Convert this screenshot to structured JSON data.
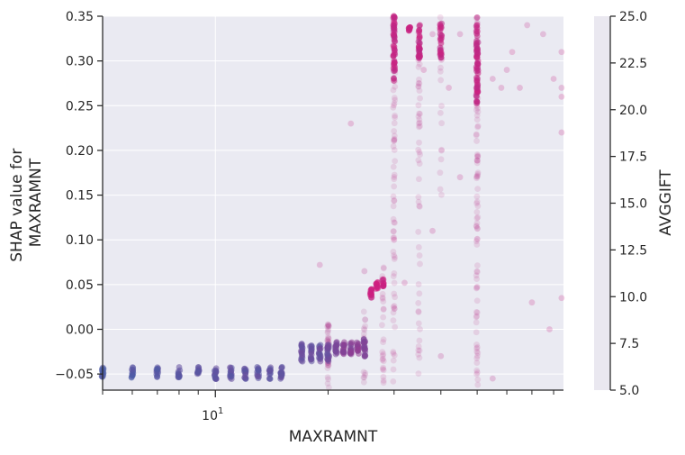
{
  "chart_data": {
    "type": "scatter",
    "xlabel": "MAXRAMNT",
    "ylabel_lines": [
      "SHAP value for",
      "MAXRAMNT"
    ],
    "x_scale": "log",
    "xlim": [
      5,
      85
    ],
    "ylim": [
      -0.068,
      0.35
    ],
    "grid": true,
    "x_tick_labels": [
      {
        "value": 10,
        "base": "10",
        "exp": "1"
      }
    ],
    "y_ticks": [
      -0.05,
      0.0,
      0.05,
      0.1,
      0.15,
      0.2,
      0.25,
      0.3,
      0.35
    ],
    "y_tick_labels": [
      "−0.05",
      "0.00",
      "0.05",
      "0.10",
      "0.15",
      "0.20",
      "0.25",
      "0.30",
      "0.35"
    ],
    "x_minor_ticks": [
      5,
      6,
      7,
      8,
      9,
      20,
      30,
      40,
      50,
      60,
      70,
      80
    ],
    "colorbar": {
      "label": "AVGGIFT",
      "range": [
        5.0,
        25.0
      ],
      "ticks": [
        5.0,
        7.5,
        10.0,
        12.5,
        15.0,
        17.5,
        20.0,
        22.5,
        25.0
      ],
      "tick_labels": [
        "5.0",
        "7.5",
        "10.0",
        "12.5",
        "15.0",
        "17.5",
        "20.0",
        "22.5",
        "25.0"
      ],
      "color_low": "#4a5ea8",
      "color_high": "#e0177a"
    },
    "series": [
      {
        "clusters": [
          {
            "x": 5,
            "y_center": -0.048,
            "y_spread": 0.006,
            "n": 14,
            "c": 5.5
          },
          {
            "x": 6,
            "y_center": -0.048,
            "y_spread": 0.006,
            "n": 14,
            "c": 6.0
          },
          {
            "x": 7,
            "y_center": -0.048,
            "y_spread": 0.006,
            "n": 14,
            "c": 7.0
          },
          {
            "x": 8,
            "y_center": -0.048,
            "y_spread": 0.006,
            "n": 14,
            "c": 7.5
          },
          {
            "x": 9,
            "y_center": -0.048,
            "y_spread": 0.006,
            "n": 14,
            "c": 8.0
          },
          {
            "x": 10,
            "y_center": -0.049,
            "y_spread": 0.007,
            "n": 18,
            "c": 8.0
          },
          {
            "x": 11,
            "y_center": -0.049,
            "y_spread": 0.007,
            "n": 16,
            "c": 8.0
          },
          {
            "x": 12,
            "y_center": -0.049,
            "y_spread": 0.007,
            "n": 16,
            "c": 8.0
          },
          {
            "x": 13,
            "y_center": -0.049,
            "y_spread": 0.007,
            "n": 14,
            "c": 8.0
          },
          {
            "x": 14,
            "y_center": -0.049,
            "y_spread": 0.007,
            "n": 14,
            "c": 8.0
          },
          {
            "x": 15,
            "y_center": -0.049,
            "y_spread": 0.007,
            "n": 18,
            "c": 8.0
          },
          {
            "x": 17,
            "y_center": -0.026,
            "y_spread": 0.01,
            "n": 20,
            "c": 9.0
          },
          {
            "x": 18,
            "y_center": -0.026,
            "y_spread": 0.01,
            "n": 18,
            "c": 9.0
          },
          {
            "x": 19,
            "y_center": -0.026,
            "y_spread": 0.01,
            "n": 18,
            "c": 9.0
          },
          {
            "x": 20,
            "y_center": -0.026,
            "y_spread": 0.01,
            "n": 22,
            "c": 9.5
          },
          {
            "x": 21,
            "y_center": -0.021,
            "y_spread": 0.007,
            "n": 16,
            "c": 12.0
          },
          {
            "x": 22,
            "y_center": -0.021,
            "y_spread": 0.007,
            "n": 16,
            "c": 13.0
          },
          {
            "x": 23,
            "y_center": -0.021,
            "y_spread": 0.007,
            "n": 16,
            "c": 13.0
          },
          {
            "x": 24,
            "y_center": -0.021,
            "y_spread": 0.007,
            "n": 14,
            "c": 14.0
          },
          {
            "x": 25,
            "y_center": -0.022,
            "y_spread": 0.012,
            "n": 22,
            "c": 12.0
          },
          {
            "x": 26,
            "y_center": 0.04,
            "y_spread": 0.006,
            "n": 14,
            "c": 22.0
          },
          {
            "x": 27,
            "y_center": 0.05,
            "y_spread": 0.005,
            "n": 12,
            "c": 22.0
          },
          {
            "x": 28,
            "y_center": 0.052,
            "y_spread": 0.004,
            "n": 10,
            "c": 22.0
          },
          {
            "x": 30,
            "y_center": 0.315,
            "y_spread": 0.04,
            "n": 50,
            "c": 21.0
          },
          {
            "x": 33,
            "y_center": 0.335,
            "y_spread": 0.003,
            "n": 10,
            "c": 22.0
          },
          {
            "x": 35,
            "y_center": 0.322,
            "y_spread": 0.02,
            "n": 30,
            "c": 21.0
          },
          {
            "x": 40,
            "y_center": 0.323,
            "y_spread": 0.02,
            "n": 24,
            "c": 21.0
          },
          {
            "x": 50,
            "y_center": 0.3,
            "y_spread": 0.05,
            "n": 60,
            "c": 21.0
          }
        ],
        "vertical_streaks": [
          {
            "x": 20,
            "y_range": [
              -0.065,
              0.01
            ],
            "n": 40,
            "c": 18.0
          },
          {
            "x": 25,
            "y_range": [
              -0.06,
              0.02
            ],
            "n": 16,
            "c": 18.0
          },
          {
            "x": 28,
            "y_range": [
              -0.06,
              0.07
            ],
            "n": 30,
            "c": 20.0
          },
          {
            "x": 30,
            "y_range": [
              -0.06,
              0.35
            ],
            "n": 70,
            "c": 20.0
          },
          {
            "x": 35,
            "y_range": [
              -0.05,
              0.35
            ],
            "n": 55,
            "c": 20.0
          },
          {
            "x": 40,
            "y_range": [
              0.15,
              0.35
            ],
            "n": 25,
            "c": 20.0
          },
          {
            "x": 50,
            "y_range": [
              -0.068,
              0.35
            ],
            "n": 90,
            "c": 20.0
          }
        ],
        "scattered": [
          [
            23,
            0.23,
            22
          ],
          [
            30,
            0.34,
            23
          ],
          [
            36,
            0.29,
            22
          ],
          [
            38,
            0.33,
            21
          ],
          [
            42,
            0.27,
            22
          ],
          [
            45,
            0.33,
            21
          ],
          [
            55,
            0.28,
            21
          ],
          [
            58,
            0.27,
            22
          ],
          [
            60,
            0.29,
            21
          ],
          [
            62,
            0.31,
            23
          ],
          [
            65,
            0.27,
            22
          ],
          [
            68,
            0.34,
            21
          ],
          [
            75,
            0.33,
            21
          ],
          [
            80,
            0.28,
            22
          ],
          [
            84,
            0.26,
            23
          ],
          [
            84,
            0.31,
            22
          ],
          [
            84,
            0.27,
            21
          ],
          [
            84,
            0.22,
            22
          ],
          [
            78,
            0.0,
            22
          ],
          [
            84,
            0.035,
            22
          ],
          [
            19,
            0.072,
            21
          ],
          [
            32,
            0.052,
            21
          ],
          [
            40,
            -0.03,
            20
          ],
          [
            55,
            -0.055,
            20
          ],
          [
            70,
            0.03,
            22
          ],
          [
            30,
            0.1,
            21
          ],
          [
            38,
            0.11,
            21
          ],
          [
            45,
            0.17,
            21
          ],
          [
            25,
            0.065,
            20
          ]
        ]
      }
    ]
  }
}
